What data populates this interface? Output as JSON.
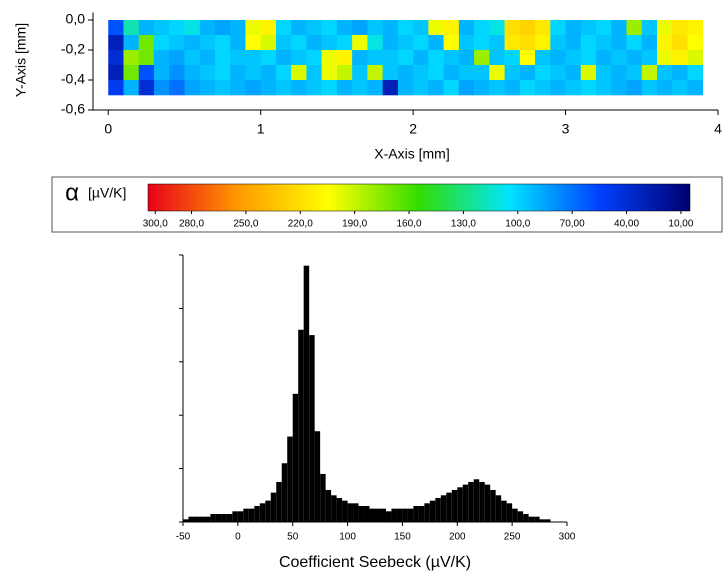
{
  "chart_data": [
    {
      "type": "heatmap",
      "xlabel": "X-Axis [mm]",
      "ylabel": "Y-Axis [mm]",
      "xlim": [
        -0.1,
        4
      ],
      "xticks": [
        0,
        1,
        2,
        3,
        4
      ],
      "ylim": [
        -0.6,
        0.05
      ],
      "yticks": [
        {
          "value": 0,
          "label": "0,0"
        },
        {
          "value": -0.2,
          "label": "-0,2"
        },
        {
          "value": -0.4,
          "label": "-0,4"
        },
        {
          "value": -0.6,
          "label": "-0,6"
        }
      ],
      "x_extent": [
        0,
        3.9
      ],
      "y_extent": [
        0,
        -0.5
      ],
      "z": [
        [
          60,
          120,
          90,
          95,
          100,
          110,
          90,
          85,
          90,
          200,
          210,
          100,
          90,
          95,
          100,
          90,
          85,
          95,
          90,
          100,
          95,
          200,
          210,
          90,
          100,
          110,
          220,
          225,
          215,
          100,
          90,
          95,
          100,
          90,
          180,
          95,
          200,
          215,
          210
        ],
        [
          30,
          90,
          170,
          100,
          95,
          90,
          95,
          100,
          90,
          205,
          195,
          95,
          100,
          90,
          95,
          100,
          200,
          110,
          90,
          95,
          100,
          90,
          205,
          95,
          100,
          95,
          215,
          220,
          210,
          95,
          90,
          100,
          95,
          90,
          100,
          90,
          210,
          220,
          205
        ],
        [
          40,
          180,
          170,
          90,
          85,
          95,
          90,
          100,
          95,
          95,
          100,
          90,
          95,
          100,
          200,
          210,
          90,
          95,
          95,
          100,
          90,
          100,
          95,
          90,
          180,
          95,
          100,
          205,
          95,
          90,
          95,
          100,
          90,
          95,
          90,
          95,
          200,
          210,
          195
        ],
        [
          30,
          170,
          60,
          90,
          80,
          90,
          95,
          100,
          90,
          95,
          90,
          100,
          195,
          95,
          200,
          190,
          95,
          190,
          95,
          90,
          95,
          100,
          90,
          95,
          95,
          200,
          95,
          90,
          100,
          95,
          90,
          195,
          95,
          90,
          95,
          190,
          95,
          90,
          100
        ],
        [
          50,
          90,
          40,
          80,
          70,
          85,
          90,
          95,
          90,
          85,
          90,
          95,
          90,
          95,
          100,
          90,
          95,
          90,
          30,
          90,
          95,
          90,
          100,
          85,
          90,
          95,
          90,
          100,
          95,
          90,
          95,
          100,
          95,
          90,
          85,
          95,
          90,
          95,
          90
        ]
      ]
    },
    {
      "type": "colorbar",
      "symbol": "α",
      "unit": "[µV/K]",
      "clim": [
        304,
        5
      ],
      "colors": [
        "#e8001a",
        "#ff9a00",
        "#ffff00",
        "#33dd00",
        "#00e5ff",
        "#0040ff",
        "#000070"
      ],
      "ticks": [
        {
          "value": 300,
          "label": "300,0"
        },
        {
          "value": 280,
          "label": "280,0"
        },
        {
          "value": 250,
          "label": "250,0"
        },
        {
          "value": 220,
          "label": "220,0"
        },
        {
          "value": 190,
          "label": "190,0"
        },
        {
          "value": 160,
          "label": "160,0"
        },
        {
          "value": 130,
          "label": "130,0"
        },
        {
          "value": 100,
          "label": "100,0"
        },
        {
          "value": 70,
          "label": "70,00"
        },
        {
          "value": 40,
          "label": "40,00"
        },
        {
          "value": 10,
          "label": "10,00"
        }
      ]
    },
    {
      "type": "histogram",
      "xlabel": "Coefficient Seebeck (µV/K)",
      "color": "#000000",
      "xlim": [
        -50,
        300
      ],
      "xticks": [
        -50,
        0,
        50,
        100,
        150,
        200,
        250,
        300
      ],
      "ylim": [
        0,
        100
      ],
      "yticks": [
        0,
        20,
        40,
        60,
        80,
        100
      ],
      "bins": [
        -50,
        -45,
        -40,
        -35,
        -30,
        -25,
        -20,
        -15,
        -10,
        -5,
        0,
        5,
        10,
        15,
        20,
        25,
        30,
        35,
        40,
        45,
        50,
        55,
        60,
        65,
        70,
        75,
        80,
        85,
        90,
        95,
        100,
        105,
        110,
        115,
        120,
        125,
        130,
        135,
        140,
        145,
        150,
        155,
        160,
        165,
        170,
        175,
        180,
        185,
        190,
        195,
        200,
        205,
        210,
        215,
        220,
        225,
        230,
        235,
        240,
        245,
        250,
        255,
        260,
        265,
        270,
        275,
        280,
        285,
        290,
        295,
        300
      ],
      "values": [
        1,
        2,
        2,
        2,
        2,
        3,
        3,
        3,
        3,
        4,
        4,
        5,
        5,
        6,
        7,
        8,
        11,
        15,
        22,
        32,
        48,
        72,
        96,
        70,
        34,
        18,
        12,
        10,
        9,
        8,
        7,
        7,
        6,
        6,
        5,
        5,
        5,
        4,
        5,
        5,
        5,
        5,
        6,
        6,
        7,
        8,
        9,
        10,
        11,
        12,
        13,
        14,
        15,
        16,
        15,
        14,
        12,
        10,
        8,
        7,
        5,
        4,
        3,
        2,
        2,
        1,
        1,
        0,
        0,
        0
      ]
    }
  ]
}
